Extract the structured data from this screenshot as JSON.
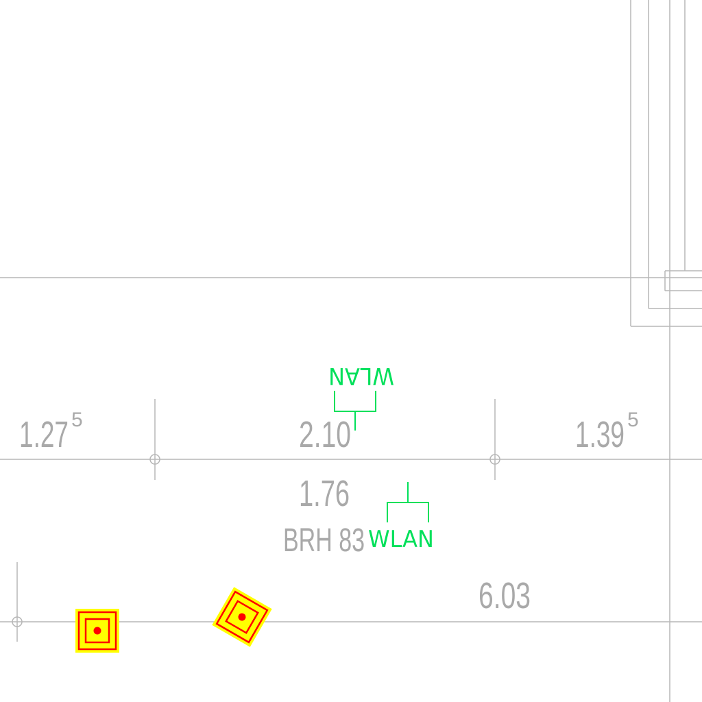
{
  "drawing": {
    "dimensions": {
      "left": {
        "value": "1.27",
        "sup": "5"
      },
      "center": {
        "value": "2.10"
      },
      "right": {
        "value": "1.39",
        "sup": "5"
      },
      "below": {
        "value": "1.76"
      },
      "bottom": {
        "value": "6.03"
      }
    },
    "brh_label": "BRH 83",
    "wlan_label_top": "WLAN",
    "wlan_label_bottom": "WLAN",
    "colors": {
      "line": "#b7b7b7",
      "dimension_text": "#a9a9a9",
      "wlan": "#00e05a",
      "marker_fill": "#ffff00",
      "marker_stroke": "#ff0000"
    },
    "icons": [
      "wlan-access-point-icon",
      "ceiling-marker-square-icon",
      "ceiling-marker-diamond-icon",
      "dimension-tick-icon"
    ]
  }
}
